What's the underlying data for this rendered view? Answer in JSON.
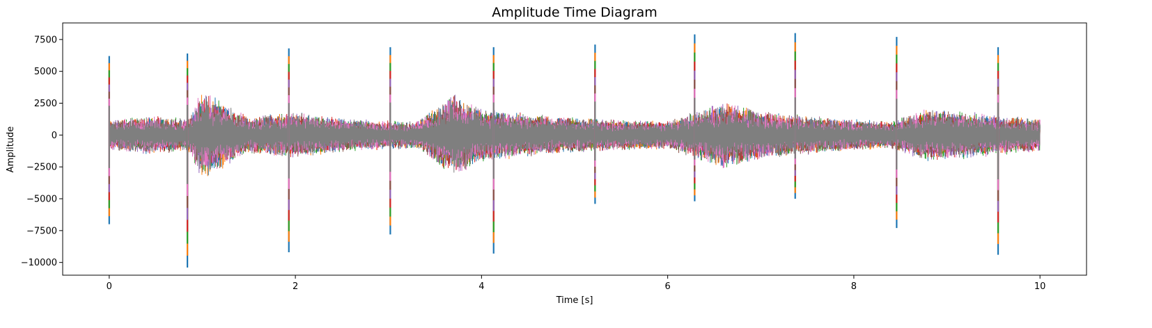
{
  "chart_data": {
    "type": "line",
    "title": "Amplitude Time Diagram",
    "xlabel": "Time [s]",
    "ylabel": "Amplitude",
    "xlim": [
      -0.5,
      10.5
    ],
    "ylim": [
      -11000,
      8800
    ],
    "xticks": [
      0,
      2,
      4,
      6,
      8,
      10
    ],
    "yticks": [
      -10000,
      -7500,
      -5000,
      -2500,
      0,
      2500,
      5000,
      7500
    ],
    "ytick_labels": [
      "−10000",
      "−7500",
      "−5000",
      "−2500",
      "0",
      "2500",
      "5000",
      "7500"
    ],
    "grid": false,
    "legend": "none",
    "series_colors": [
      "#1f77b4",
      "#ff7f0e",
      "#2ca02c",
      "#d62728",
      "#9467bd",
      "#8c564b",
      "#e377c2",
      "#7f7f7f"
    ],
    "spikes": [
      {
        "t": 0.0,
        "max": 6200,
        "min": -7000
      },
      {
        "t": 0.84,
        "max": 6400,
        "min": -10400
      },
      {
        "t": 1.93,
        "max": 6800,
        "min": -9200
      },
      {
        "t": 3.02,
        "max": 6900,
        "min": -7800
      },
      {
        "t": 4.13,
        "max": 6900,
        "min": -9300
      },
      {
        "t": 5.22,
        "max": 7100,
        "min": -5400
      },
      {
        "t": 6.29,
        "max": 7900,
        "min": -5200
      },
      {
        "t": 7.37,
        "max": 8000,
        "min": -5000
      },
      {
        "t": 8.46,
        "max": 7700,
        "min": -7300
      },
      {
        "t": 9.55,
        "max": 6900,
        "min": -9400
      }
    ],
    "envelope": [
      {
        "t": 0.0,
        "amp": 1200
      },
      {
        "t": 0.4,
        "amp": 1600
      },
      {
        "t": 0.84,
        "amp": 1300
      },
      {
        "t": 1.0,
        "amp": 3600
      },
      {
        "t": 1.5,
        "amp": 1500
      },
      {
        "t": 2.0,
        "amp": 1900
      },
      {
        "t": 2.6,
        "amp": 1300
      },
      {
        "t": 3.3,
        "amp": 1100
      },
      {
        "t": 3.7,
        "amp": 3300
      },
      {
        "t": 4.0,
        "amp": 2200
      },
      {
        "t": 4.5,
        "amp": 1700
      },
      {
        "t": 5.0,
        "amp": 1400
      },
      {
        "t": 6.0,
        "amp": 1100
      },
      {
        "t": 6.6,
        "amp": 2700
      },
      {
        "t": 7.0,
        "amp": 1900
      },
      {
        "t": 7.8,
        "amp": 1400
      },
      {
        "t": 8.4,
        "amp": 1100
      },
      {
        "t": 8.8,
        "amp": 2200
      },
      {
        "t": 9.3,
        "amp": 1800
      },
      {
        "t": 10.0,
        "amp": 1300
      }
    ]
  }
}
